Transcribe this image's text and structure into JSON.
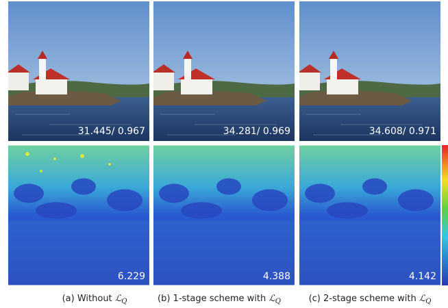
{
  "panels": [
    {
      "top_label": "31.445/ 0.967",
      "bottom_label": "6.229"
    },
    {
      "top_label": "34.281/ 0.969",
      "bottom_label": "4.388"
    },
    {
      "top_label": "34.608/ 0.971",
      "bottom_label": "4.142"
    }
  ],
  "captions": [
    {
      "text": "(a) Without",
      "symbol": "ℒ",
      "subscript": "Q"
    },
    {
      "text": "(b) 1-stage scheme with",
      "symbol": "ℒ",
      "subscript": "Q"
    },
    {
      "text": "(c) 2-stage scheme with",
      "symbol": "ℒ",
      "subscript": "Q"
    }
  ]
}
